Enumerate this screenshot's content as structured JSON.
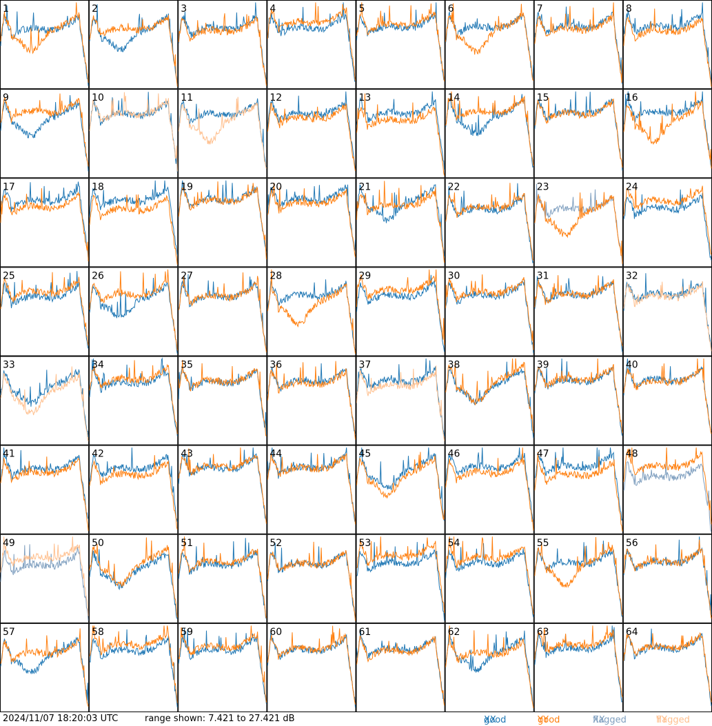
{
  "chart_data": {
    "type": "line",
    "layout": "small-multiples grid 8x8",
    "panel_labels": [
      "1",
      "2",
      "3",
      "4",
      "5",
      "6",
      "7",
      "8",
      "9",
      "10",
      "11",
      "12",
      "13",
      "14",
      "15",
      "16",
      "17",
      "18",
      "19",
      "20",
      "21",
      "22",
      "23",
      "24",
      "25",
      "26",
      "27",
      "28",
      "29",
      "30",
      "31",
      "32",
      "33",
      "34",
      "35",
      "36",
      "37",
      "38",
      "39",
      "40",
      "41",
      "42",
      "43",
      "44",
      "45",
      "46",
      "47",
      "48",
      "49",
      "50",
      "51",
      "52",
      "53",
      "54",
      "55",
      "56",
      "57",
      "58",
      "59",
      "60",
      "61",
      "62",
      "63",
      "64"
    ],
    "range_min_db": 7.421,
    "range_max_db": 27.421,
    "series": [
      {
        "name": "good XX",
        "color": "#1f77b4"
      },
      {
        "name": "good YY",
        "color": "#ff7f0e"
      },
      {
        "name": "flagged XX",
        "color": "#7f9fbf"
      },
      {
        "name": "flagged YY",
        "color": "#ffc08f"
      }
    ],
    "flags": {
      "xx_flagged": [
        23,
        48,
        49
      ],
      "yy_flagged": [
        10,
        11,
        32,
        33,
        37,
        49
      ]
    }
  },
  "footer": {
    "timestamp": "2024/11/07 18:20:03 UTC",
    "range_text": "range shown: 7.421 to 27.421 dB",
    "legend": [
      {
        "word": "good",
        "pol": "XX",
        "color": "#1f77b4"
      },
      {
        "word": "good",
        "pol": "YY",
        "color": "#ff7f0e"
      },
      {
        "word": "flagged",
        "pol": "XX",
        "color": "#7f9fbf"
      },
      {
        "word": "flagged",
        "pol": "YY",
        "color": "#ffc08f"
      }
    ]
  }
}
